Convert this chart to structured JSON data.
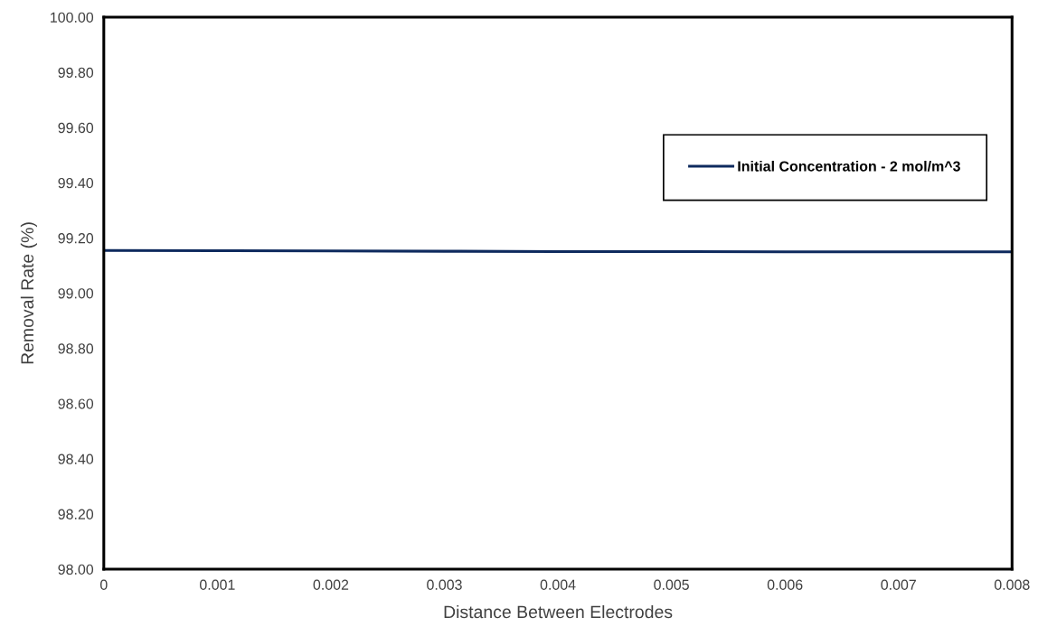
{
  "chart_data": {
    "type": "line",
    "xlabel": "Distance Between Electrodes",
    "ylabel": "Removal Rate (%)",
    "x": [
      0,
      0.001,
      0.002,
      0.003,
      0.004,
      0.005,
      0.006,
      0.007,
      0.008
    ],
    "series": [
      {
        "name": "Initial Concentration - 2 mol/m^3",
        "color": "#0e2a5e",
        "values": [
          99.155,
          99.154,
          99.153,
          99.152,
          99.151,
          99.151,
          99.15,
          99.15,
          99.15
        ]
      }
    ],
    "xlim": [
      0,
      0.008
    ],
    "xticks": [
      0,
      0.001,
      0.002,
      0.003,
      0.004,
      0.005,
      0.006,
      0.007,
      0.008
    ],
    "ylim": [
      98,
      100
    ],
    "yticks": [
      {
        "value": 98,
        "label": "98.00"
      },
      {
        "value": 98.2,
        "label": "98.20"
      },
      {
        "value": 98.4,
        "label": "98.40"
      },
      {
        "value": 98.6,
        "label": "98.60"
      },
      {
        "value": 98.8,
        "label": "98.80"
      },
      {
        "value": 99,
        "label": "99.00"
      },
      {
        "value": 99.2,
        "label": "99.20"
      },
      {
        "value": 99.4,
        "label": "99.40"
      },
      {
        "value": 99.6,
        "label": "99.60"
      },
      {
        "value": 99.8,
        "label": "99.80"
      },
      {
        "value": 100,
        "label": "100.00"
      }
    ],
    "legend": "top right",
    "grid": false,
    "marker": "none",
    "line_style": "solid"
  }
}
